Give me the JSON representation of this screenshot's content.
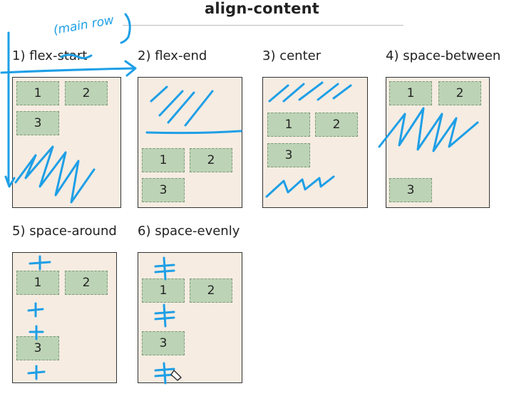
{
  "heading": "align-content",
  "panels": [
    {
      "label": "1) flex-start",
      "items": [
        "1",
        "2",
        "3"
      ]
    },
    {
      "label": "2) flex-end",
      "items": [
        "1",
        "2",
        "3"
      ]
    },
    {
      "label": "3) center",
      "items": [
        "1",
        "2",
        "3"
      ]
    },
    {
      "label": "4) space-between",
      "items": [
        "1",
        "2",
        "3"
      ]
    },
    {
      "label": "5) space-around",
      "items": [
        "1",
        "2",
        "3"
      ]
    },
    {
      "label": "6) space-evenly",
      "items": [
        "1",
        "2",
        "3"
      ]
    }
  ],
  "annotations": {
    "handwritten_note": "(main row"
  },
  "colors": {
    "panel_background": "#f6ece2",
    "item_background": "#bcd3b5",
    "ink": "#1e9fe6"
  }
}
